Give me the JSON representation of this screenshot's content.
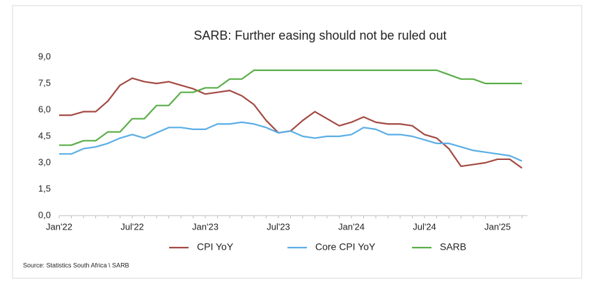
{
  "chart_data": {
    "type": "line",
    "title": "SARB: Further easing should not be ruled out",
    "source": "Source:  Statistics South Africa \\ SARB",
    "categories": [
      "Jan'22",
      null,
      null,
      null,
      null,
      null,
      "Jul'22",
      null,
      null,
      null,
      null,
      null,
      "Jan'23",
      null,
      null,
      null,
      null,
      null,
      "Jul'23",
      null,
      null,
      null,
      null,
      null,
      "Jan'24",
      null,
      null,
      null,
      null,
      null,
      "Jul'24",
      null,
      null,
      null,
      null,
      null,
      "Jan'25",
      null,
      null
    ],
    "series": [
      {
        "name": "CPI YoY",
        "color": "#a34a43",
        "values": [
          5.7,
          5.7,
          5.9,
          5.9,
          6.5,
          7.4,
          7.8,
          7.6,
          7.5,
          7.6,
          7.4,
          7.2,
          6.9,
          7.0,
          7.1,
          6.8,
          6.3,
          5.4,
          4.7,
          4.8,
          5.4,
          5.9,
          5.5,
          5.1,
          5.3,
          5.6,
          5.3,
          5.2,
          5.2,
          5.1,
          4.6,
          4.4,
          3.8,
          2.8,
          2.9,
          3.0,
          3.2,
          3.2,
          2.7
        ]
      },
      {
        "name": "Core CPI YoY",
        "color": "#5aaee6",
        "values": [
          3.5,
          3.5,
          3.8,
          3.9,
          4.1,
          4.4,
          4.6,
          4.4,
          4.7,
          5.0,
          5.0,
          4.9,
          4.9,
          5.2,
          5.2,
          5.3,
          5.2,
          5.0,
          4.7,
          4.8,
          4.5,
          4.4,
          4.5,
          4.5,
          4.6,
          5.0,
          4.9,
          4.6,
          4.6,
          4.5,
          4.3,
          4.1,
          4.1,
          3.9,
          3.7,
          3.6,
          3.5,
          3.4,
          3.1
        ]
      },
      {
        "name": "SARB",
        "color": "#5aae48",
        "values": [
          4.0,
          4.0,
          4.25,
          4.25,
          4.75,
          4.75,
          5.5,
          5.5,
          6.25,
          6.25,
          7.0,
          7.0,
          7.25,
          7.25,
          7.75,
          7.75,
          8.25,
          8.25,
          8.25,
          8.25,
          8.25,
          8.25,
          8.25,
          8.25,
          8.25,
          8.25,
          8.25,
          8.25,
          8.25,
          8.25,
          8.25,
          8.25,
          8.0,
          7.75,
          7.75,
          7.5,
          7.5,
          7.5,
          7.5
        ]
      }
    ],
    "ylim": [
      0,
      9
    ],
    "yticks": [
      {
        "value": 0,
        "label": "0,0"
      },
      {
        "value": 1.5,
        "label": "1,5"
      },
      {
        "value": 3,
        "label": "3,0"
      },
      {
        "value": 4.5,
        "label": "4,5"
      },
      {
        "value": 6,
        "label": "6,0"
      },
      {
        "value": 7.5,
        "label": "7,5"
      },
      {
        "value": 9,
        "label": "9,0"
      }
    ],
    "grid": false,
    "legend": "bottom"
  }
}
